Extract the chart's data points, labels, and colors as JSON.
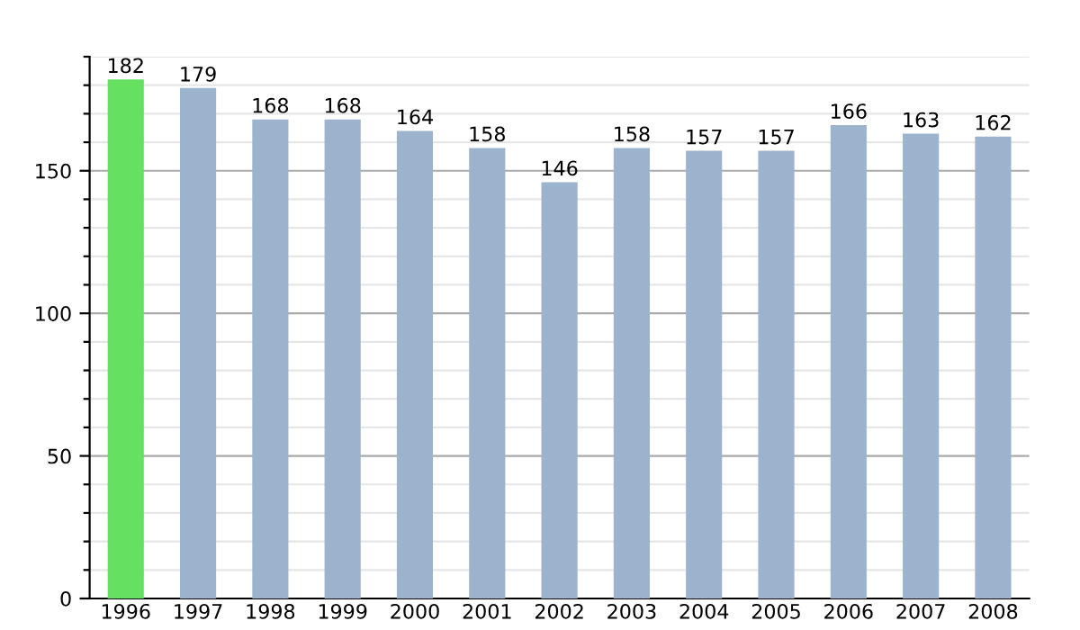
{
  "chart_data": {
    "type": "bar",
    "categories": [
      "1996",
      "1997",
      "1998",
      "1999",
      "2000",
      "2001",
      "2002",
      "2003",
      "2004",
      "2005",
      "2006",
      "2007",
      "2008"
    ],
    "values": [
      182,
      179,
      168,
      168,
      164,
      158,
      146,
      158,
      157,
      157,
      166,
      163,
      162
    ],
    "colors": [
      "#66e060",
      "#9bb3cc",
      "#9bb3cc",
      "#9bb3cc",
      "#9bb3cc",
      "#9bb3cc",
      "#9bb3cc",
      "#9bb3cc",
      "#9bb3cc",
      "#9bb3cc",
      "#9bb3cc",
      "#9bb3cc",
      "#9bb3cc"
    ],
    "ylim": [
      0,
      190
    ],
    "yticks": [
      0,
      {
        "value": 10,
        "label": null
      },
      {
        "value": 20,
        "label": null
      },
      {
        "value": 30,
        "label": null
      },
      {
        "value": 40,
        "label": null
      },
      50,
      {
        "value": 60,
        "label": null
      },
      {
        "value": 70,
        "label": null
      },
      {
        "value": 80,
        "label": null
      },
      {
        "value": 90,
        "label": null
      },
      100,
      {
        "value": 110,
        "label": null
      },
      {
        "value": 120,
        "label": null
      },
      {
        "value": 130,
        "label": null
      },
      {
        "value": 140,
        "label": null
      },
      150,
      {
        "value": 160,
        "label": null
      },
      {
        "value": 170,
        "label": null
      },
      {
        "value": 180,
        "label": null
      },
      {
        "value": 190,
        "label": null
      }
    ],
    "grid": true,
    "data_labels": true
  }
}
